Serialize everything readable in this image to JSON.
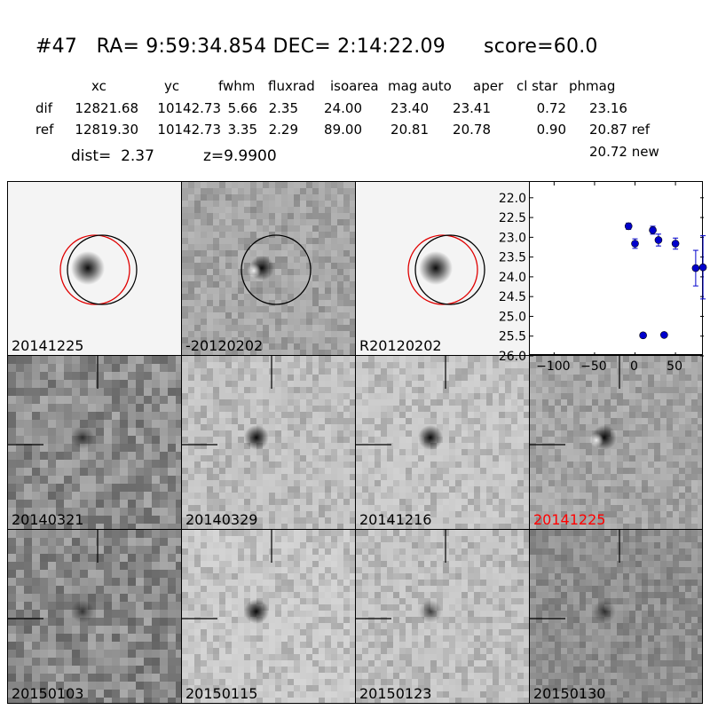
{
  "header": {
    "title": "#47   RA= 9:59:34.854 DEC= 2:14:22.09      score=60.0",
    "columns": [
      "xc",
      "yc",
      "fwhm",
      "fluxrad",
      "isoarea",
      "mag auto",
      "aper",
      "cl star",
      "phmag"
    ],
    "rows": [
      {
        "label": "dif",
        "values": [
          "12821.68",
          "10142.73",
          "5.66",
          "2.35",
          "24.00",
          "23.40",
          "23.41",
          "0.72",
          "23.16"
        ]
      },
      {
        "label": "ref",
        "values": [
          "12819.30",
          "10142.73",
          "3.35",
          "2.29",
          "89.00",
          "20.81",
          "20.78",
          "0.90",
          "20.87 ref"
        ]
      }
    ],
    "new_mag": "20.72 new",
    "dist": "dist=  2.37",
    "z": "z=9.9900"
  },
  "stamps": [
    {
      "label": "20141225",
      "bg": "#f4f4f4",
      "texture": "smooth",
      "blob": "dark",
      "circles": [
        "red",
        "black"
      ],
      "crosshair": false
    },
    {
      "label": "-20120202",
      "bg": "#a9a9a9",
      "texture": "noise",
      "blob": "dipole",
      "circles": [
        "black"
      ],
      "crosshair": false
    },
    {
      "label": "R20120202",
      "bg": "#f4f4f4",
      "texture": "smooth",
      "blob": "dark",
      "circles": [
        "red",
        "black"
      ],
      "crosshair": false
    },
    {
      "label": "20140321",
      "bg": "#8e8e8e",
      "texture": "heavy",
      "blob": "faint",
      "circles": [],
      "crosshair": true
    },
    {
      "label": "20140329",
      "bg": "#c4c4c4",
      "texture": "noise",
      "blob": "dark",
      "circles": [],
      "crosshair": true
    },
    {
      "label": "20141216",
      "bg": "#c8c8c8",
      "texture": "noise",
      "blob": "dark",
      "circles": [],
      "crosshair": true
    },
    {
      "label": "20141225",
      "bg": "#a8a8a8",
      "texture": "noise",
      "blob": "dipole",
      "circles": [],
      "crosshair": true,
      "label_color": "#ff0000"
    },
    {
      "label": "20150103",
      "bg": "#8a8a8a",
      "texture": "heavy",
      "blob": "faint",
      "circles": [],
      "crosshair": true
    },
    {
      "label": "20150115",
      "bg": "#cdcdcd",
      "texture": "noise",
      "blob": "dark",
      "circles": [],
      "crosshair": true
    },
    {
      "label": "20150123",
      "bg": "#c6c6c6",
      "texture": "noise",
      "blob": "faint",
      "circles": [],
      "crosshair": true
    },
    {
      "label": "20150130",
      "bg": "#8f8f8f",
      "texture": "noise",
      "blob": "faint",
      "circles": [],
      "crosshair": true
    }
  ],
  "chart_data": {
    "type": "scatter",
    "xlim": [
      -130,
      85
    ],
    "ylim": [
      26.0,
      21.6
    ],
    "y_inverted": true,
    "xticks": [
      -100,
      -50,
      0,
      50
    ],
    "yticks": [
      22.0,
      22.5,
      23.0,
      23.5,
      24.0,
      24.5,
      25.0,
      25.5,
      26.0
    ],
    "grid": false,
    "marker_color": "#0000cc",
    "points": [
      {
        "x": -8,
        "y": 22.72,
        "err": 0.08
      },
      {
        "x": 0,
        "y": 23.16,
        "err": 0.12
      },
      {
        "x": 10,
        "y": 25.48,
        "err": 0.05
      },
      {
        "x": 22,
        "y": 22.82,
        "err": 0.1
      },
      {
        "x": 29,
        "y": 23.07,
        "err": 0.15
      },
      {
        "x": 36,
        "y": 25.47,
        "err": 0.05
      },
      {
        "x": 50,
        "y": 23.16,
        "err": 0.14
      },
      {
        "x": 75,
        "y": 23.78,
        "err": 0.45
      },
      {
        "x": 84,
        "y": 23.76,
        "err": 0.8
      }
    ]
  }
}
